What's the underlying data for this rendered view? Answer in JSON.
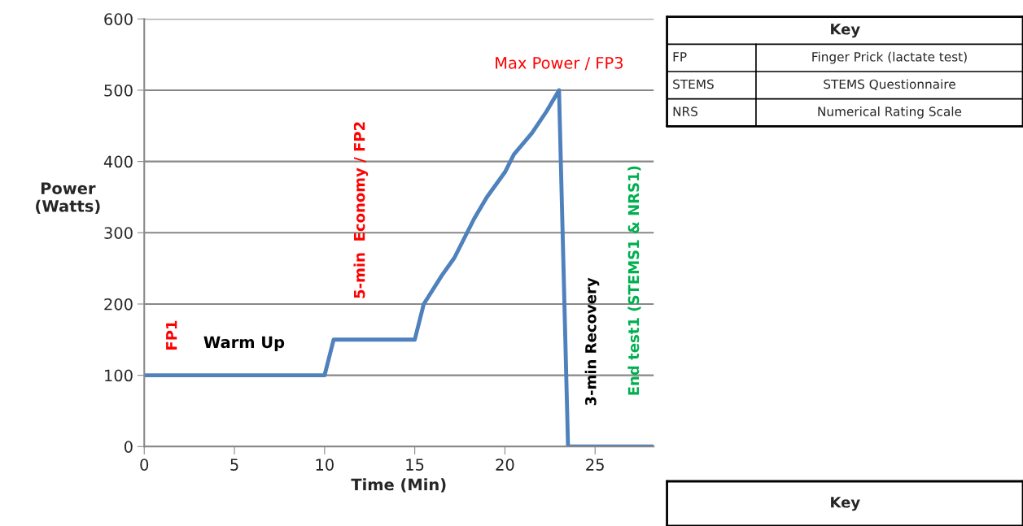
{
  "chart_data": [
    {
      "type": "line",
      "xlabel": "Time (Min)",
      "ylabel": "Power\n(Watts)",
      "series": [
        {
          "color": "#4f81bd",
          "x": [
            0,
            10,
            10.5,
            15,
            15.5,
            16.5,
            17.2,
            18.3,
            19,
            20,
            20.5,
            21.5,
            22.3,
            23,
            23.5,
            28.25
          ],
          "values": [
            100,
            100,
            150,
            150,
            200,
            240,
            265,
            320,
            350,
            385,
            410,
            440,
            470,
            500,
            0,
            0
          ]
        }
      ],
      "xlim": [
        0,
        28.25
      ],
      "xticks": [
        0,
        5,
        10,
        15,
        20,
        25
      ],
      "ylim": [
        0,
        600
      ],
      "yticks": [
        0,
        100,
        200,
        300,
        400,
        500,
        600
      ],
      "grid": "y",
      "legend": false,
      "marker": "none",
      "line_style": "solid",
      "annotations": [
        "FP1",
        "Warm Up",
        "5-min  Economy / FP2",
        {
          "text": "Max Power / FP3",
          "x": 23,
          "y": 500
        },
        "3-min Recovery",
        "End test1 (STEMS1 & NRS1)"
      ]
    },
    {
      "type": "other",
      "title": "Key",
      "annotations": [
        "FP",
        "Finger Prick (lactate test)",
        "STEMS",
        "STEMS Questionnaire",
        "NRS",
        "Numerical Rating Scale"
      ]
    },
    {
      "type": "other",
      "title": "Key"
    }
  ]
}
